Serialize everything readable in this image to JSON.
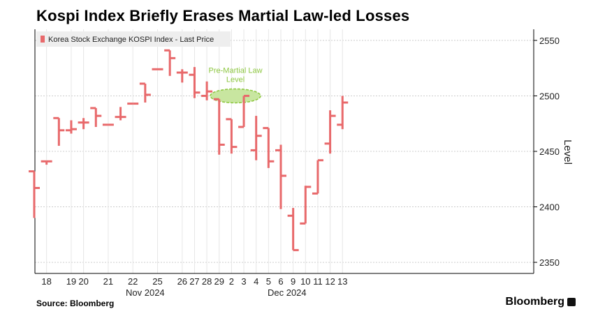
{
  "title": "Kospi Index Briefly Erases Martial Law-led Losses",
  "footer": {
    "source": "Source: Bloomberg",
    "brand": "Bloomberg"
  },
  "colors": {
    "series": "#e8696b",
    "grid": "#cccccc",
    "annotation": "#8cc63f",
    "annotation_fill": "#c8e6a0"
  },
  "chart_data": {
    "type": "bar",
    "subtype": "ohlc-hilo",
    "title": "Kospi Index Briefly Erases Martial Law-led Losses",
    "ylabel": "Level",
    "ylim": [
      2340,
      2560
    ],
    "yticks": [
      2350,
      2400,
      2450,
      2500,
      2550
    ],
    "legend": {
      "label": "Korea Stock Exchange KOSPI Index - Last Price",
      "position": "top-left"
    },
    "month_labels": [
      {
        "label": "Nov 2024",
        "between": [
          "21",
          "26"
        ]
      },
      {
        "label": "Dec 2024",
        "between": [
          "5",
          "10"
        ]
      }
    ],
    "annotation": {
      "text": [
        "Pre-Martial Law",
        "Level"
      ],
      "value": 2500,
      "at_category": "3"
    },
    "bars": [
      {
        "label": "",
        "open": 2432,
        "high": 2432,
        "low": 2390,
        "close": 2417
      },
      {
        "label": "18",
        "open": 2441,
        "high": 2441,
        "low": 2438,
        "close": 2441
      },
      {
        "label": "",
        "open": 2480,
        "high": 2480,
        "low": 2455,
        "close": 2469
      },
      {
        "label": "19",
        "open": 2469,
        "high": 2478,
        "low": 2466,
        "close": 2470
      },
      {
        "label": "20",
        "open": 2476,
        "high": 2480,
        "low": 2470,
        "close": 2476
      },
      {
        "label": "",
        "open": 2489,
        "high": 2489,
        "low": 2472,
        "close": 2482
      },
      {
        "label": "21",
        "open": 2474,
        "high": 2474,
        "low": 2474,
        "close": 2474
      },
      {
        "label": "",
        "open": 2481,
        "high": 2490,
        "low": 2478,
        "close": 2481
      },
      {
        "label": "22",
        "open": 2493,
        "high": 2493,
        "low": 2493,
        "close": 2493
      },
      {
        "label": "",
        "open": 2511,
        "high": 2511,
        "low": 2494,
        "close": 2501
      },
      {
        "label": "25",
        "open": 2524,
        "high": 2524,
        "low": 2524,
        "close": 2524
      },
      {
        "label": "",
        "open": 2541,
        "high": 2541,
        "low": 2518,
        "close": 2534
      },
      {
        "label": "26",
        "open": 2521,
        "high": 2524,
        "low": 2512,
        "close": 2521
      },
      {
        "label": "27",
        "open": 2519,
        "high": 2526,
        "low": 2498,
        "close": 2503
      },
      {
        "label": "28",
        "open": 2500,
        "high": 2513,
        "low": 2496,
        "close": 2504
      },
      {
        "label": "29",
        "open": 2497,
        "high": 2497,
        "low": 2447,
        "close": 2456
      },
      {
        "label": "2",
        "open": 2479,
        "high": 2479,
        "low": 2448,
        "close": 2454
      },
      {
        "label": "3",
        "open": 2472,
        "high": 2500,
        "low": 2472,
        "close": 2500
      },
      {
        "label": "4",
        "open": 2451,
        "high": 2482,
        "low": 2442,
        "close": 2464
      },
      {
        "label": "5",
        "open": 2471,
        "high": 2471,
        "low": 2435,
        "close": 2441
      },
      {
        "label": "6",
        "open": 2451,
        "high": 2456,
        "low": 2398,
        "close": 2428
      },
      {
        "label": "9",
        "open": 2392,
        "high": 2399,
        "low": 2361,
        "close": 2361
      },
      {
        "label": "10",
        "open": 2385,
        "high": 2419,
        "low": 2385,
        "close": 2418
      },
      {
        "label": "11",
        "open": 2412,
        "high": 2442,
        "low": 2412,
        "close": 2442
      },
      {
        "label": "12",
        "open": 2457,
        "high": 2487,
        "low": 2448,
        "close": 2482
      },
      {
        "label": "13",
        "open": 2474,
        "high": 2500,
        "low": 2470,
        "close": 2494
      }
    ]
  }
}
